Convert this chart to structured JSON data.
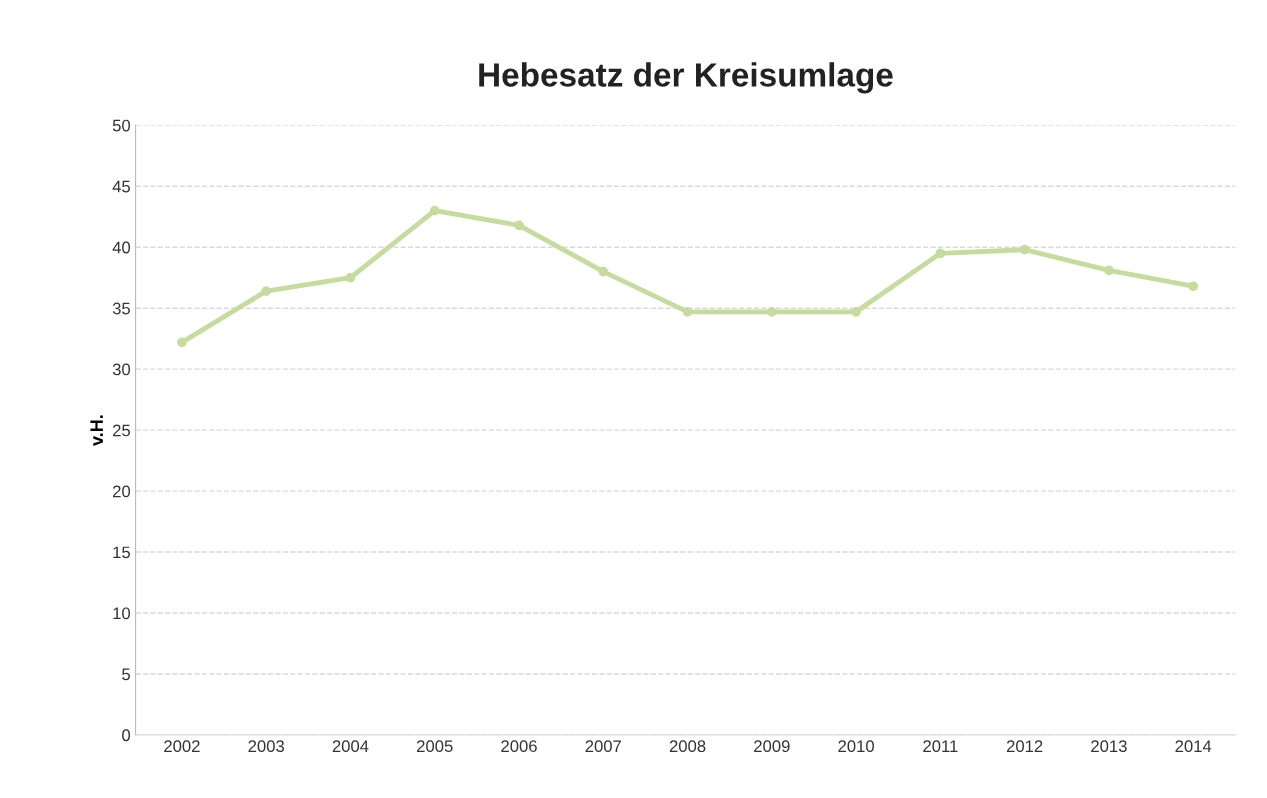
{
  "chart_data": {
    "type": "line",
    "title": "Hebesatz der Kreisumlage",
    "ylabel": "v.H.",
    "categories": [
      "2002",
      "2003",
      "2004",
      "2005",
      "2006",
      "2007",
      "2008",
      "2009",
      "2010",
      "2011",
      "2012",
      "2013",
      "2014"
    ],
    "series": [
      {
        "color": "#c5dc9e",
        "values": [
          32.2,
          36.4,
          37.5,
          43.0,
          41.8,
          38.0,
          34.7,
          34.7,
          34.7,
          39.5,
          39.8,
          38.1,
          36.8
        ]
      }
    ],
    "ylim": [
      0,
      50
    ],
    "yticks": [
      0,
      5,
      10,
      15,
      20,
      25,
      30,
      35,
      40,
      45,
      50
    ],
    "grid": "y",
    "marker": "circle",
    "line_style": "solid",
    "legend": false
  }
}
